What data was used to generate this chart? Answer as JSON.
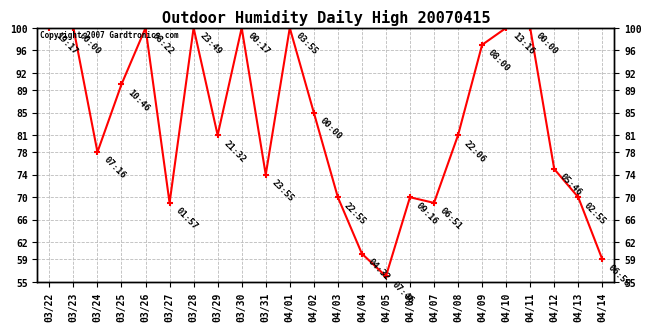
{
  "title": "Outdoor Humidity Daily High 20070415",
  "copyright": "Copyright 2007 Gardtronics.com",
  "line_color": "red",
  "marker_color": "red",
  "background_color": "white",
  "grid_color": "#bbbbbb",
  "xlabels": [
    "03/22",
    "03/23",
    "03/24",
    "03/25",
    "03/26",
    "03/27",
    "03/28",
    "03/29",
    "03/30",
    "03/31",
    "04/01",
    "04/02",
    "04/03",
    "04/04",
    "04/05",
    "04/06",
    "04/07",
    "04/08",
    "04/09",
    "04/10",
    "04/11",
    "04/12",
    "04/13",
    "04/14"
  ],
  "xindices": [
    0,
    1,
    2,
    3,
    4,
    5,
    6,
    7,
    8,
    9,
    10,
    11,
    12,
    13,
    14,
    15,
    16,
    17,
    18,
    19,
    20,
    21,
    22,
    23
  ],
  "yvalues": [
    100,
    100,
    78,
    90,
    100,
    69,
    100,
    81,
    100,
    74,
    100,
    85,
    70,
    60,
    56,
    70,
    69,
    81,
    97,
    100,
    100,
    75,
    70,
    59
  ],
  "time_labels": [
    "19:17",
    "00:00",
    "07:16",
    "10:46",
    "08:22",
    "01:57",
    "23:49",
    "21:32",
    "00:17",
    "23:55",
    "03:55",
    "00:00",
    "22:55",
    "04:32",
    "07:46",
    "09:16",
    "06:51",
    "22:06",
    "08:00",
    "13:16",
    "00:00",
    "05:46",
    "02:55",
    "06:58"
  ],
  "yticks": [
    55,
    59,
    62,
    66,
    70,
    74,
    78,
    81,
    85,
    89,
    92,
    96,
    100
  ],
  "ylim": [
    55,
    100
  ],
  "title_fontsize": 11,
  "label_fontsize": 6.5,
  "tick_fontsize": 7,
  "marker_size": 5,
  "linewidth": 1.5
}
